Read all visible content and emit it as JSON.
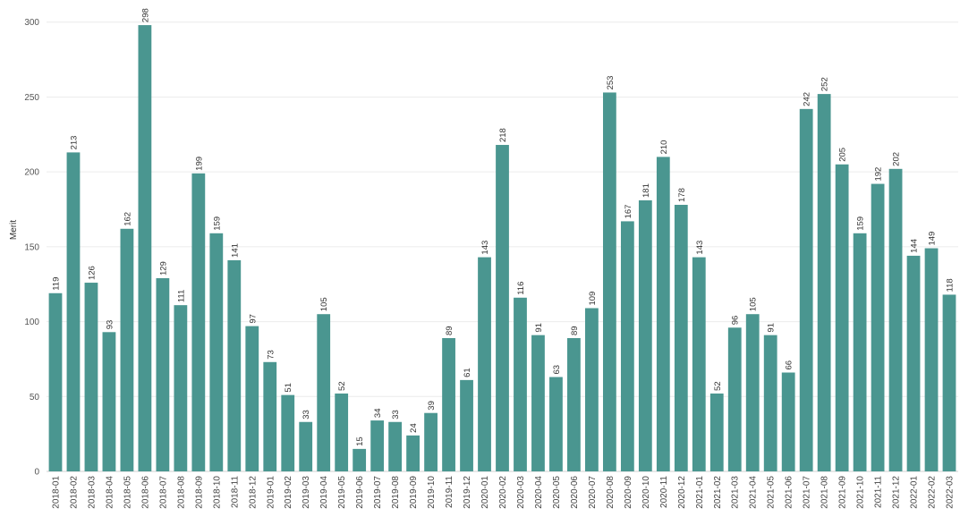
{
  "chart_data": {
    "type": "bar",
    "title": "",
    "xlabel": "",
    "ylabel": "Merit",
    "ylim": [
      0,
      310
    ],
    "yticks": [
      0,
      50,
      100,
      150,
      200,
      250,
      300
    ],
    "grid": true,
    "data_labels": true,
    "bar_color": "#4a9690",
    "categories": [
      "2018-01",
      "2018-02",
      "2018-03",
      "2018-04",
      "2018-05",
      "2018-06",
      "2018-07",
      "2018-08",
      "2018-09",
      "2018-10",
      "2018-11",
      "2018-12",
      "2019-01",
      "2019-02",
      "2019-03",
      "2019-04",
      "2019-05",
      "2019-06",
      "2019-07",
      "2019-08",
      "2019-09",
      "2019-10",
      "2019-11",
      "2019-12",
      "2020-01",
      "2020-02",
      "2020-03",
      "2020-04",
      "2020-05",
      "2020-06",
      "2020-07",
      "2020-08",
      "2020-09",
      "2020-10",
      "2020-11",
      "2020-12",
      "2021-01",
      "2021-02",
      "2021-03",
      "2021-04",
      "2021-05",
      "2021-06",
      "2021-07",
      "2021-08",
      "2021-09",
      "2021-10",
      "2021-11",
      "2021-12",
      "2022-01",
      "2022-02",
      "2022-03"
    ],
    "values": [
      119,
      213,
      126,
      93,
      162,
      298,
      129,
      111,
      199,
      159,
      141,
      97,
      73,
      51,
      33,
      105,
      52,
      15,
      34,
      33,
      24,
      39,
      89,
      61,
      143,
      218,
      116,
      91,
      63,
      89,
      109,
      253,
      167,
      181,
      210,
      178,
      143,
      52,
      96,
      105,
      91,
      66,
      242,
      252,
      205,
      159,
      192,
      202,
      144,
      149,
      118
    ]
  }
}
